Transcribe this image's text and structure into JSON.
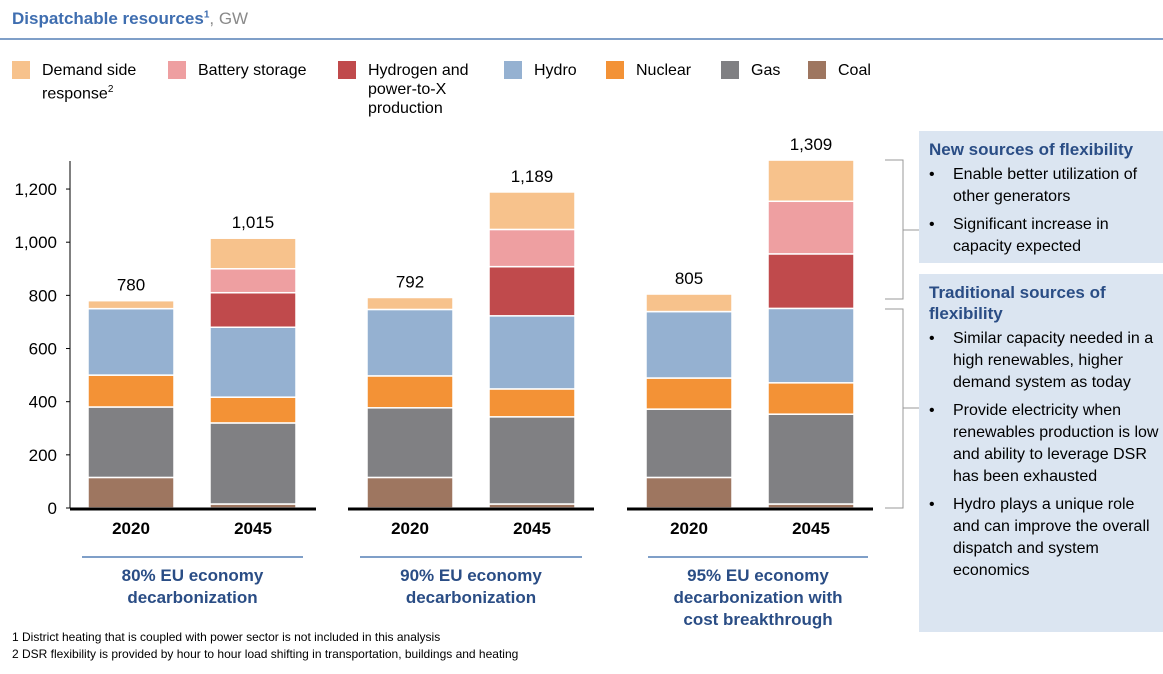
{
  "title": {
    "main": "Dispatchable resources",
    "superscript": "1",
    "unit": ", GW"
  },
  "legend": [
    {
      "label": "Demand side response",
      "superscript": "2",
      "color": "#f7c28c"
    },
    {
      "label": "Battery storage",
      "superscript": "",
      "color": "#ee9fa1"
    },
    {
      "label": "Hydrogen and power-to-X production",
      "superscript": "",
      "color": "#c04a4c"
    },
    {
      "label": "Hydro",
      "superscript": "",
      "color": "#95b1d1"
    },
    {
      "label": "Nuclear",
      "superscript": "",
      "color": "#f39236"
    },
    {
      "label": "Gas",
      "superscript": "",
      "color": "#808083"
    },
    {
      "label": "Coal",
      "superscript": "",
      "color": "#9e7660"
    }
  ],
  "chart_data": {
    "type": "bar",
    "stacked": true,
    "ylabel": "",
    "ylim": [
      0,
      1300
    ],
    "yticks": [
      0,
      200,
      400,
      600,
      800,
      1000,
      1200
    ],
    "ytick_labels": [
      "0",
      "200",
      "400",
      "600",
      "800",
      "1,000",
      "1,200"
    ],
    "groups": [
      {
        "label": "80% EU economy decarbonization",
        "categories": [
          "2020",
          "2045"
        ],
        "totals": [
          "780",
          "1,015"
        ]
      },
      {
        "label": "90% EU economy decarbonization",
        "categories": [
          "2020",
          "2045"
        ],
        "totals": [
          "792",
          "1,189"
        ]
      },
      {
        "label": "95% EU economy decarbonization with cost breakthrough",
        "categories": [
          "2020",
          "2045"
        ],
        "totals": [
          "805",
          "1,309"
        ]
      }
    ],
    "series": [
      {
        "name": "Coal",
        "color": "#9e7660",
        "values": [
          115,
          15,
          115,
          15,
          115,
          15
        ]
      },
      {
        "name": "Gas",
        "color": "#808083",
        "values": [
          265,
          305,
          262,
          328,
          257,
          338
        ]
      },
      {
        "name": "Nuclear",
        "color": "#f39236",
        "values": [
          120,
          97,
          120,
          105,
          117,
          118
        ]
      },
      {
        "name": "Hydro",
        "color": "#95b1d1",
        "values": [
          250,
          263,
          250,
          275,
          250,
          280
        ]
      },
      {
        "name": "Hydrogen and power-to-X production",
        "color": "#c04a4c",
        "values": [
          0,
          130,
          0,
          185,
          0,
          205
        ]
      },
      {
        "name": "Battery storage",
        "color": "#ee9fa1",
        "values": [
          0,
          90,
          0,
          140,
          0,
          198
        ]
      },
      {
        "name": "Demand side response",
        "color": "#f7c28c",
        "values": [
          30,
          115,
          45,
          141,
          66,
          155
        ]
      }
    ]
  },
  "side_panels": [
    {
      "title": "New sources of flexibility",
      "bullets": [
        "Enable better utilization of other generators",
        "Significant increase in capacity expected"
      ]
    },
    {
      "title": "Traditional sources of flexibility",
      "bullets": [
        "Similar capacity needed in a high renewables, higher demand system as today",
        "Provide electricity when renewables production is low and ability to leverage DSR has been exhausted",
        "Hydro plays a unique role and can improve the overall dispatch and system economics"
      ]
    }
  ],
  "footnotes": [
    "1 District heating that is coupled with power sector is not included in this analysis",
    "2 DSR flexibility is provided by hour to hour load shifting in transportation, buildings and heating"
  ]
}
